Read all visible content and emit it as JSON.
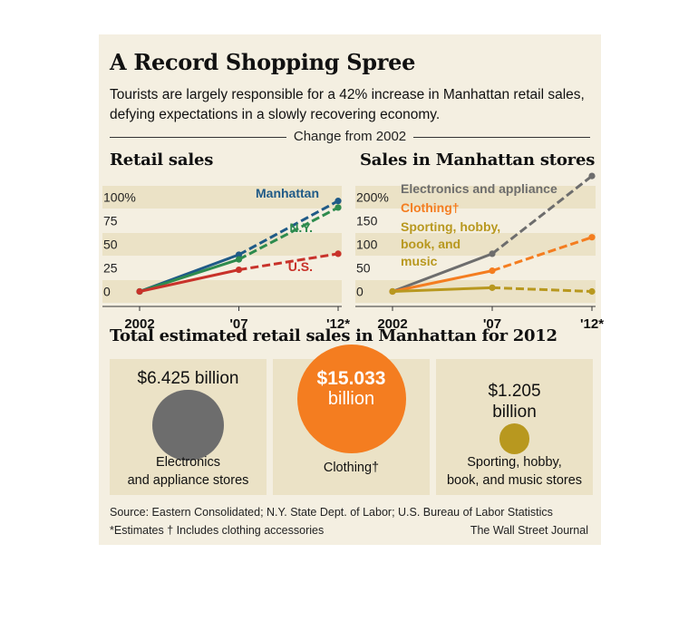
{
  "title": "A Record Shopping Spree",
  "subtitle": "Tourists are largely responsible for a 42% increase in Manhattan retail sales, defying expectations in a slowly recovering economy.",
  "change_label": "Change from 2002",
  "colors": {
    "background": "#f4efe1",
    "band": "#ebe2c6",
    "manhattan": "#1f5a87",
    "ny": "#2e8b4e",
    "us": "#c8322a",
    "electronics": "#6d6d6d",
    "clothing": "#f47d20",
    "sporting": "#b8981f"
  },
  "chart_data": [
    {
      "type": "line",
      "title": "Retail sales",
      "x": [
        "2002",
        "'07",
        "'12*"
      ],
      "ylim": [
        -10,
        105
      ],
      "yticks": [
        0,
        25,
        50,
        75,
        100
      ],
      "ytick_labels": [
        "0",
        "25",
        "50",
        "75",
        "100%"
      ],
      "grid": "alternating horizontal bands",
      "series_style": "solid 2002–'07, dashed '07–'12 (estimates)",
      "series": [
        {
          "name": "Manhattan",
          "values": [
            0,
            39,
            96
          ],
          "color": "#1f5a87"
        },
        {
          "name": "N.Y.",
          "values": [
            0,
            34,
            89
          ],
          "color": "#2e8b4e"
        },
        {
          "name": "U.S.",
          "values": [
            0,
            23,
            40
          ],
          "color": "#c8322a"
        }
      ]
    },
    {
      "type": "line",
      "title": "Sales in Manhattan stores",
      "x": [
        "2002",
        "'07",
        "'12*"
      ],
      "ylim": [
        -10,
        260
      ],
      "yticks": [
        0,
        50,
        100,
        150,
        200
      ],
      "ytick_labels": [
        "0",
        "50",
        "100",
        "150",
        "200%"
      ],
      "grid": "alternating horizontal bands",
      "series_style": "solid 2002–'07, dashed '07–'12 (estimates)",
      "series": [
        {
          "name": "Electronics and appliance",
          "values": [
            0,
            80,
            245
          ],
          "color": "#6d6d6d"
        },
        {
          "name": "Clothing†",
          "values": [
            0,
            44,
            115
          ],
          "color": "#f47d20"
        },
        {
          "name": "Sporting, hobby, book, and music",
          "values": [
            0,
            8,
            0
          ],
          "color": "#b8981f"
        }
      ]
    },
    {
      "type": "bubble",
      "title": "Total estimated retail sales in Manhattan for 2012",
      "unit": "billion dollars",
      "categories": [
        "Electronics and appliance stores",
        "Clothing†",
        "Sporting, hobby, book, and music stores"
      ],
      "values": [
        6.425,
        15.033,
        1.205
      ],
      "labels": [
        "$6.425 billion",
        "$15.033 billion",
        "$1.205 billion"
      ]
    }
  ],
  "totals": {
    "heading": "Total estimated retail sales in Manhattan for 2012",
    "electronics": {
      "amount": "$6.425 billion",
      "label_line1": "Electronics",
      "label_line2": "and appliance stores"
    },
    "clothing": {
      "amount_line1": "$15.033",
      "amount_line2": "billion",
      "label": "Clothing†"
    },
    "sporting": {
      "amount_line1": "$1.205",
      "amount_line2": "billion",
      "label_line1": "Sporting, hobby,",
      "label_line2": "book, and music stores"
    }
  },
  "footer": {
    "source": "Source: Eastern Consolidated; N.Y. State Dept. of Labor; U.S. Bureau of Labor Statistics",
    "notes": "*Estimates   † Includes clothing accessories",
    "credit": "The Wall Street Journal"
  }
}
